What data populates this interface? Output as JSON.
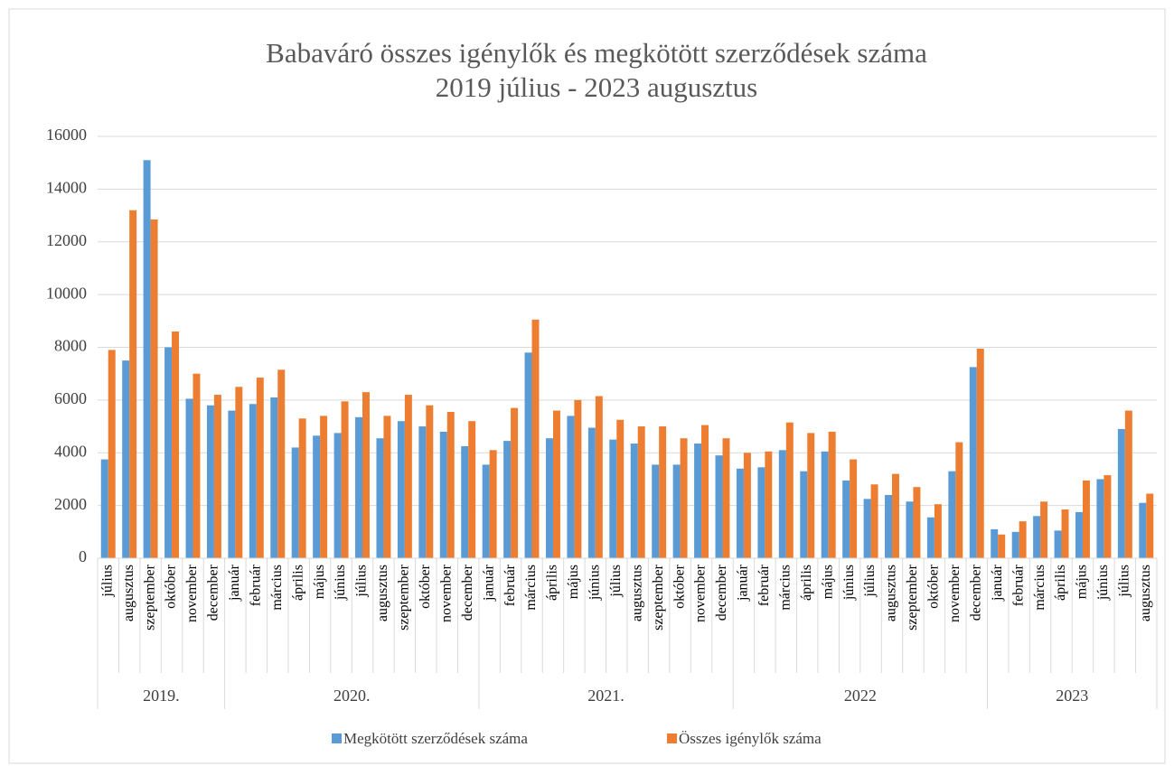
{
  "chart_data": {
    "type": "bar",
    "title": "Babaváró összes igénylők és megkötött szerződések száma",
    "subtitle": "2019 július - 2023 augusztus",
    "groups": [
      {
        "label": "2019.",
        "categories": [
          "július",
          "augusztus",
          "szeptember",
          "október",
          "november",
          "december"
        ]
      },
      {
        "label": "2020.",
        "categories": [
          "január",
          "február",
          "március",
          "április",
          "május",
          "június",
          "július",
          "augusztus",
          "szeptember",
          "október",
          "november",
          "december"
        ]
      },
      {
        "label": "2021.",
        "categories": [
          "január",
          "február",
          "március",
          "április",
          "május",
          "június",
          "július",
          "augusztus",
          "szeptember",
          "október",
          "november",
          "december"
        ]
      },
      {
        "label": "2022",
        "categories": [
          "január",
          "február",
          "március",
          "április",
          "május",
          "június",
          "július",
          "augusztus",
          "szeptember",
          "október",
          "november",
          "december"
        ]
      },
      {
        "label": "2023",
        "categories": [
          "január",
          "február",
          "március",
          "április",
          "május",
          "június",
          "július",
          "augusztus"
        ]
      }
    ],
    "series": [
      {
        "name": "Megkötött szerződések száma",
        "color": "#5b9bd5",
        "values": [
          3750,
          7500,
          15100,
          8000,
          6050,
          5800,
          5600,
          5850,
          6100,
          4200,
          4650,
          4750,
          5350,
          4550,
          5200,
          5000,
          4800,
          4250,
          3550,
          4450,
          7800,
          4550,
          5400,
          4950,
          4500,
          4350,
          3550,
          3550,
          4350,
          3900,
          3400,
          3450,
          4100,
          3300,
          4050,
          2950,
          2250,
          2400,
          2150,
          1550,
          3300,
          7250,
          1100,
          1000,
          1600,
          1050,
          1750,
          3000,
          4900,
          2100
        ]
      },
      {
        "name": "Összes igénylők száma",
        "color": "#ed7d31",
        "values": [
          7900,
          13200,
          12850,
          8600,
          7000,
          6200,
          6500,
          6850,
          7150,
          5300,
          5400,
          5950,
          6300,
          5400,
          6200,
          5800,
          5550,
          5200,
          4100,
          5700,
          9050,
          5600,
          6000,
          6150,
          5250,
          5000,
          5000,
          4550,
          5050,
          4550,
          4000,
          4050,
          5150,
          4750,
          4800,
          3750,
          2800,
          3200,
          2700,
          2050,
          4400,
          7950,
          900,
          1400,
          2150,
          1850,
          2950,
          3150,
          5600,
          2450
        ]
      }
    ],
    "ylim": [
      0,
      16000
    ],
    "yticks": [
      0,
      2000,
      4000,
      6000,
      8000,
      10000,
      12000,
      14000,
      16000
    ],
    "grid": true,
    "legend": "bottom"
  }
}
